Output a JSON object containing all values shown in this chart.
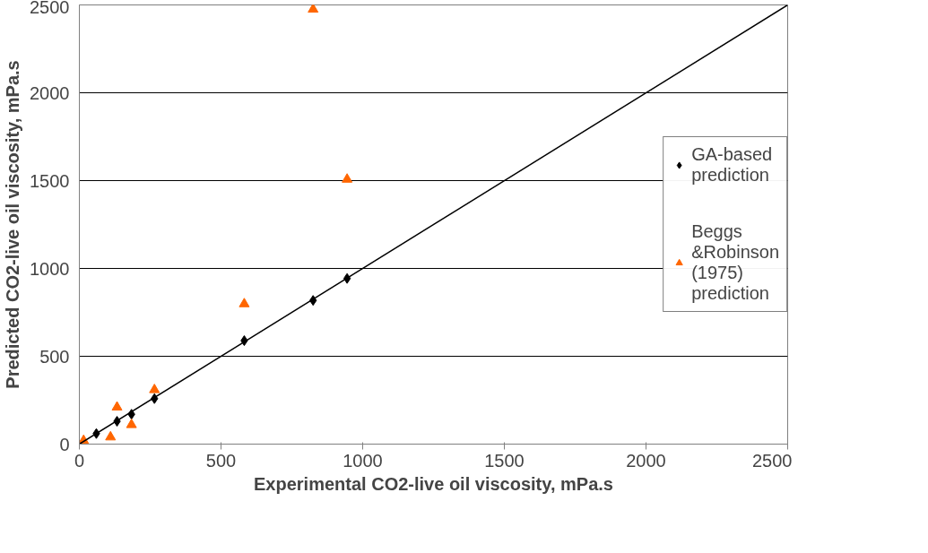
{
  "chart_data": {
    "type": "scatter",
    "xlabel": "Experimental CO2-live oil viscosity, mPa.s",
    "ylabel": "Predicted CO2-live oil viscosity, mPa.s",
    "xlim": [
      0,
      2500
    ],
    "ylim": [
      0,
      2500
    ],
    "xticks": [
      0,
      500,
      1000,
      1500,
      2000,
      2500
    ],
    "yticks": [
      0,
      500,
      1000,
      1500,
      2000,
      2500
    ],
    "grid": "y",
    "legend": "right",
    "series": [
      {
        "name": "GA-based prediction",
        "color": "#000000",
        "marker": "diamond",
        "x": [
          60,
          133,
          184,
          265,
          582,
          825,
          945
        ],
        "values": [
          60,
          130,
          170,
          259,
          589,
          818,
          943
        ]
      },
      {
        "name": "Beggs &Robinson (1975) prediction",
        "color": "#ff6600",
        "marker": "triangle",
        "x": [
          15,
          110,
          133,
          184,
          265,
          582,
          825,
          945
        ],
        "values": [
          20,
          40,
          210,
          110,
          309,
          798,
          2475,
          1507
        ]
      },
      {
        "type": "line",
        "color": "#000000",
        "x": [
          0,
          2500
        ],
        "values": [
          0,
          2500
        ]
      }
    ]
  }
}
